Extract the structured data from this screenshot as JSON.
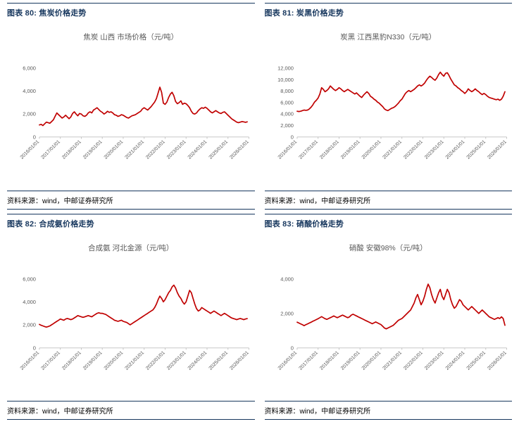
{
  "accent_color": "#17375E",
  "line_color": "#C00000",
  "panels": [
    {
      "header": "图表 80: 焦炭价格走势",
      "source": "资料来源：wind，中邮证券研究所"
    },
    {
      "header": "图表 81: 炭黑价格走势",
      "source": "资料来源：wind，中邮证券研究所"
    },
    {
      "header": "图表 82: 合成氨价格走势",
      "source": "资料来源：wind，中邮证券研究所"
    },
    {
      "header": "图表 83: 硝酸价格走势",
      "source": "资料来源：wind，中邮证券研究所"
    }
  ],
  "chart_data": [
    {
      "type": "line",
      "title": "焦炭 山西 市场价格（元/吨）",
      "xlabel": "",
      "ylabel": "",
      "grid": false,
      "legend": "none",
      "x_range": [
        2016,
        2026
      ],
      "x_tick_labels": [
        "2016/01/01",
        "2017/01/01",
        "2018/01/01",
        "2019/01/01",
        "2020/01/01",
        "2021/01/01",
        "2022/01/01",
        "2023/01/01",
        "2024/01/01",
        "2025/01/01",
        "2026/01/01"
      ],
      "ylim": [
        0,
        6000
      ],
      "y_ticks": [
        {
          "v": 0,
          "label": "0"
        },
        {
          "v": 2000,
          "label": "2,000"
        },
        {
          "v": 4000,
          "label": "4,000"
        },
        {
          "v": 6000,
          "label": "6,000"
        }
      ],
      "series": [
        {
          "name": "焦炭 山西 市场价格",
          "color": "#C00000",
          "cadence": "monthly 2016-01 to 2025-12",
          "values": [
            1050,
            1100,
            1000,
            1150,
            1300,
            1250,
            1200,
            1350,
            1500,
            1800,
            2100,
            1950,
            1800,
            1650,
            1750,
            1900,
            1750,
            1600,
            1750,
            2050,
            2200,
            2000,
            1850,
            2050,
            2000,
            1850,
            1800,
            1900,
            2100,
            2200,
            2100,
            2350,
            2450,
            2550,
            2400,
            2250,
            2150,
            2000,
            2100,
            2250,
            2150,
            2200,
            2100,
            1950,
            1900,
            1800,
            1850,
            1950,
            1900,
            1800,
            1700,
            1650,
            1750,
            1850,
            1900,
            1950,
            2050,
            2150,
            2250,
            2450,
            2550,
            2450,
            2350,
            2500,
            2650,
            2850,
            3050,
            3350,
            3850,
            4350,
            3900,
            2950,
            2850,
            3050,
            3450,
            3750,
            3900,
            3600,
            3100,
            2900,
            3000,
            3150,
            2850,
            2950,
            2900,
            2750,
            2550,
            2250,
            2050,
            2000,
            2100,
            2300,
            2450,
            2550,
            2500,
            2600,
            2500,
            2350,
            2200,
            2100,
            2200,
            2300,
            2200,
            2100,
            2050,
            2150,
            2200,
            2050,
            1900,
            1750,
            1600,
            1500,
            1400,
            1300,
            1250,
            1300,
            1350,
            1320,
            1280,
            1320
          ]
        }
      ]
    },
    {
      "type": "line",
      "title": "炭黑 江西黑豹N330（元/吨）",
      "xlabel": "",
      "ylabel": "",
      "grid": false,
      "legend": "none",
      "x_range": [
        2016,
        2026
      ],
      "x_tick_labels": [
        "2016/01/01",
        "2017/01/01",
        "2018/01/01",
        "2019/01/01",
        "2020/01/01",
        "2021/01/01",
        "2022/01/01",
        "2023/01/01",
        "2024/01/01",
        "2025/01/01",
        "2026/01/01"
      ],
      "ylim": [
        0,
        12000
      ],
      "y_ticks": [
        {
          "v": 0,
          "label": "0"
        },
        {
          "v": 2000,
          "label": "2,000"
        },
        {
          "v": 4000,
          "label": "4,000"
        },
        {
          "v": 6000,
          "label": "6,000"
        },
        {
          "v": 8000,
          "label": "8,000"
        },
        {
          "v": 10000,
          "label": "10,000"
        },
        {
          "v": 12000,
          "label": "12,000"
        }
      ],
      "series": [
        {
          "name": "炭黑 江西黑豹N330",
          "color": "#C00000",
          "cadence": "monthly 2016-01 to 2025-12",
          "values": [
            4500,
            4450,
            4500,
            4600,
            4700,
            4650,
            4700,
            4900,
            5200,
            5600,
            6100,
            6400,
            6800,
            7500,
            8600,
            8300,
            7900,
            8100,
            8400,
            8900,
            8600,
            8300,
            8100,
            8300,
            8600,
            8400,
            8100,
            7900,
            8100,
            8300,
            8100,
            7900,
            7700,
            7500,
            7700,
            7400,
            7100,
            6900,
            7300,
            7600,
            7900,
            7600,
            7100,
            6900,
            6600,
            6400,
            6100,
            5900,
            5600,
            5300,
            4900,
            4700,
            4600,
            4800,
            5000,
            5100,
            5300,
            5600,
            5900,
            6300,
            6600,
            7100,
            7600,
            7900,
            8100,
            7900,
            8100,
            8300,
            8600,
            8900,
            9100,
            8900,
            9100,
            9400,
            9900,
            10300,
            10600,
            10400,
            10100,
            9900,
            10300,
            10900,
            11300,
            10900,
            10600,
            11100,
            11200,
            10700,
            10100,
            9600,
            9100,
            8900,
            8600,
            8400,
            8100,
            7900,
            7600,
            7900,
            8400,
            8100,
            7900,
            8100,
            8400,
            8100,
            7900,
            7600,
            7400,
            7600,
            7400,
            7100,
            6900,
            6800,
            6700,
            6600,
            6500,
            6600,
            6400,
            6600,
            7100,
            7900
          ]
        }
      ]
    },
    {
      "type": "line",
      "title": "合成氨 河北金源（元/吨）",
      "xlabel": "",
      "ylabel": "",
      "grid": false,
      "legend": "none",
      "x_range": [
        2016,
        2026
      ],
      "x_tick_labels": [
        "2016/01/01",
        "2017/01/01",
        "2018/01/01",
        "2019/01/01",
        "2020/01/01",
        "2021/01/01",
        "2022/01/01",
        "2023/01/01",
        "2024/01/01",
        "2025/01/01",
        "2026/01/01"
      ],
      "ylim": [
        0,
        6000
      ],
      "y_ticks": [
        {
          "v": 0,
          "label": "0"
        },
        {
          "v": 2000,
          "label": "2,000"
        },
        {
          "v": 4000,
          "label": "4,000"
        },
        {
          "v": 6000,
          "label": "6,000"
        }
      ],
      "series": [
        {
          "name": "合成氨 河北金源",
          "color": "#C00000",
          "cadence": "monthly 2016-01 to 2025-12",
          "values": [
            2050,
            1980,
            1920,
            1870,
            1820,
            1870,
            1920,
            2020,
            2120,
            2220,
            2320,
            2420,
            2520,
            2470,
            2420,
            2520,
            2570,
            2520,
            2470,
            2520,
            2620,
            2720,
            2820,
            2770,
            2720,
            2670,
            2720,
            2770,
            2820,
            2770,
            2720,
            2820,
            2920,
            3020,
            3070,
            3020,
            3020,
            2970,
            2920,
            2820,
            2720,
            2620,
            2520,
            2420,
            2370,
            2320,
            2370,
            2420,
            2320,
            2270,
            2220,
            2120,
            2020,
            2120,
            2220,
            2320,
            2420,
            2520,
            2620,
            2720,
            2820,
            2920,
            3020,
            3120,
            3220,
            3320,
            3520,
            3820,
            4220,
            4520,
            4320,
            4020,
            4220,
            4520,
            4820,
            5020,
            5320,
            5480,
            5220,
            4820,
            4520,
            4320,
            4020,
            3820,
            4020,
            4520,
            5020,
            4820,
            4320,
            3820,
            3420,
            3220,
            3320,
            3520,
            3420,
            3320,
            3220,
            3120,
            3020,
            3120,
            3220,
            3120,
            3020,
            2920,
            2820,
            2920,
            3020,
            2920,
            2820,
            2720,
            2620,
            2570,
            2520,
            2470,
            2520,
            2570,
            2520,
            2470,
            2520,
            2560
          ]
        }
      ]
    },
    {
      "type": "line",
      "title": "硝酸 安徽98%（元/吨）",
      "xlabel": "",
      "ylabel": "",
      "grid": false,
      "legend": "none",
      "x_range": [
        2016,
        2026
      ],
      "x_tick_labels": [
        "2016/01/01",
        "2017/01/01",
        "2018/01/01",
        "2019/01/01",
        "2020/01/01",
        "2021/01/01",
        "2022/01/01",
        "2023/01/01",
        "2024/01/01",
        "2025/01/01",
        "2026/01/01"
      ],
      "ylim": [
        0,
        4000
      ],
      "y_ticks": [
        {
          "v": 0,
          "label": "0"
        },
        {
          "v": 2000,
          "label": "2,000"
        },
        {
          "v": 4000,
          "label": "4,000"
        }
      ],
      "series": [
        {
          "name": "硝酸 安徽98%",
          "color": "#C00000",
          "cadence": "monthly 2016-01 to 2025-12",
          "values": [
            1500,
            1450,
            1400,
            1350,
            1300,
            1350,
            1400,
            1450,
            1500,
            1550,
            1600,
            1650,
            1700,
            1760,
            1820,
            1760,
            1700,
            1660,
            1710,
            1760,
            1810,
            1860,
            1810,
            1760,
            1810,
            1860,
            1910,
            1860,
            1810,
            1760,
            1810,
            1910,
            1960,
            1910,
            1860,
            1810,
            1760,
            1710,
            1660,
            1610,
            1560,
            1510,
            1460,
            1410,
            1460,
            1510,
            1460,
            1410,
            1360,
            1260,
            1160,
            1110,
            1160,
            1210,
            1260,
            1310,
            1410,
            1510,
            1610,
            1660,
            1710,
            1810,
            1910,
            2010,
            2110,
            2210,
            2410,
            2610,
            2910,
            3110,
            2810,
            2510,
            2710,
            3010,
            3410,
            3710,
            3510,
            3110,
            2810,
            2610,
            2910,
            3210,
            3410,
            3010,
            2810,
            3110,
            3410,
            3210,
            2810,
            2510,
            2310,
            2410,
            2610,
            2810,
            2710,
            2510,
            2410,
            2310,
            2210,
            2310,
            2410,
            2310,
            2210,
            2110,
            2010,
            2110,
            2210,
            2110,
            2010,
            1910,
            1810,
            1760,
            1710,
            1660,
            1710,
            1760,
            1710,
            1810,
            1710,
            1320
          ]
        }
      ]
    }
  ]
}
